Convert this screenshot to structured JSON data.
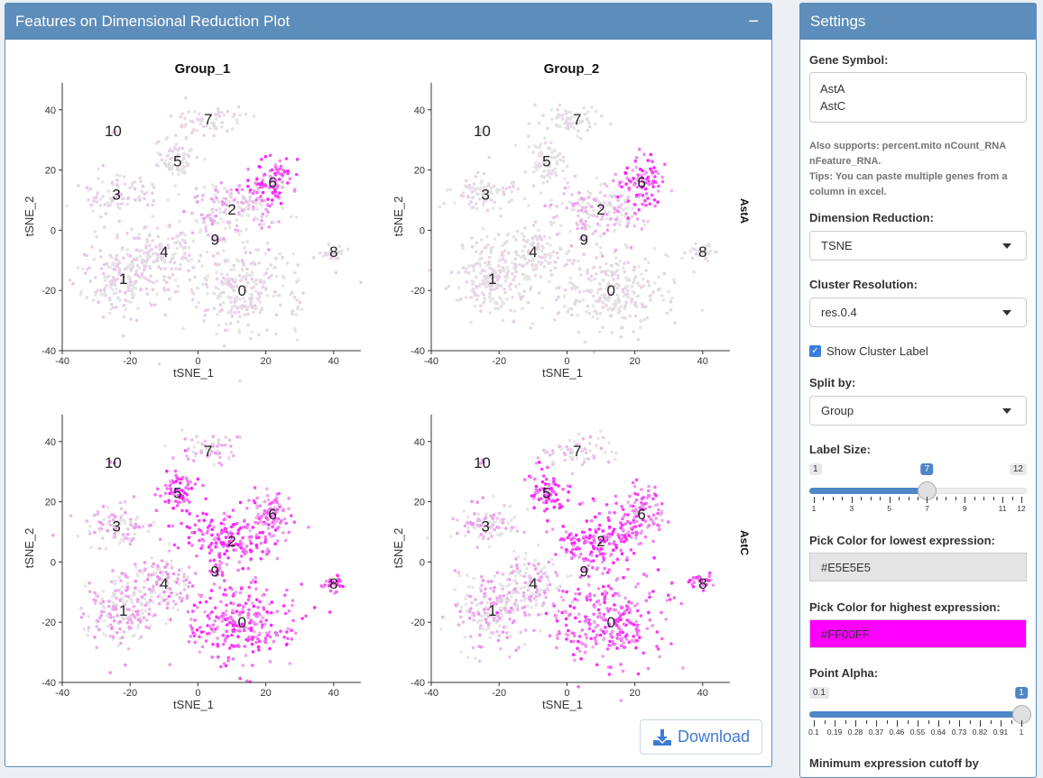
{
  "main_panel": {
    "title": "Features on Dimensional Reduction Plot",
    "collapse_label": "−",
    "download_label": "Download"
  },
  "settings": {
    "title": "Settings",
    "gene_symbol_label": "Gene Symbol:",
    "gene_symbol_value": "AstA\nAstC",
    "help_1": "Also supports: percent.mito nCount_RNA nFeature_RNA.",
    "help_2": "Tips: You can paste multiple genes from a column in excel.",
    "dim_reduction_label": "Dimension Reduction:",
    "dim_reduction_value": "TSNE",
    "cluster_res_label": "Cluster Resolution:",
    "cluster_res_value": "res.0.4",
    "show_cluster_label": "Show Cluster Label",
    "show_cluster_checked": true,
    "split_by_label": "Split by:",
    "split_by_value": "Group",
    "label_size_label": "Label Size:",
    "label_size": {
      "min": 1,
      "max": 12,
      "value": 7,
      "ticks": [
        "1",
        "3",
        "5",
        "7",
        "9",
        "11",
        "12"
      ],
      "min_label": "1",
      "max_label": "12",
      "value_label": "7"
    },
    "low_color_label": "Pick Color for lowest expression:",
    "low_color": "#E5E5E5",
    "high_color_label": "Pick Color for highest expression:",
    "high_color": "#FF00FF",
    "alpha_label": "Point Alpha:",
    "alpha": {
      "min": 0.1,
      "max": 1,
      "value": 1,
      "ticks": [
        "0.1",
        "0.19",
        "0.28",
        "0.37",
        "0.46",
        "0.55",
        "0.64",
        "0.73",
        "0.82",
        "0.91",
        "1"
      ],
      "min_label": "0.1",
      "value_label": "1"
    },
    "min_cutoff_label": "Minimum expression cutoff by"
  },
  "chart_data": {
    "type": "scatter",
    "columns": [
      "Group_1",
      "Group_2"
    ],
    "rows": [
      "AstA",
      "AstC"
    ],
    "xlabel": "tSNE_1",
    "ylabel": "tSNE_2",
    "xlim": [
      -40,
      48
    ],
    "ylim": [
      -40,
      49
    ],
    "xticks": [
      -40,
      -20,
      0,
      20,
      40
    ],
    "yticks": [
      -40,
      -20,
      0,
      20,
      40
    ],
    "low_color": "#E5E5E5",
    "high_color": "#FF00FF",
    "clusters": [
      {
        "label": "0",
        "x": 13,
        "y": -20
      },
      {
        "label": "1",
        "x": -22,
        "y": -16
      },
      {
        "label": "2",
        "x": 10,
        "y": 7
      },
      {
        "label": "3",
        "x": -24,
        "y": 12
      },
      {
        "label": "4",
        "x": -10,
        "y": -7
      },
      {
        "label": "5",
        "x": -6,
        "y": 23
      },
      {
        "label": "6",
        "x": 22,
        "y": 16
      },
      {
        "label": "7",
        "x": 3,
        "y": 37
      },
      {
        "label": "8",
        "x": 40,
        "y": -7
      },
      {
        "label": "9",
        "x": 5,
        "y": -3
      },
      {
        "label": "10",
        "x": -25,
        "y": 33
      }
    ],
    "mean_expression": {
      "AstA": {
        "Group_1": [
          0.1,
          0.12,
          0.3,
          0.12,
          0.1,
          0.08,
          0.75,
          0.08,
          0.1,
          0.1,
          0.1
        ],
        "Group_2": [
          0.08,
          0.08,
          0.25,
          0.08,
          0.08,
          0.06,
          0.75,
          0.06,
          0.08,
          0.08,
          0.08
        ]
      },
      "AstC": {
        "Group_1": [
          0.7,
          0.3,
          0.8,
          0.3,
          0.35,
          0.85,
          0.55,
          0.25,
          0.8,
          0.5,
          0.5
        ],
        "Group_2": [
          0.7,
          0.3,
          0.8,
          0.3,
          0.3,
          0.85,
          0.6,
          0.2,
          0.8,
          0.5,
          0.5
        ]
      }
    }
  }
}
